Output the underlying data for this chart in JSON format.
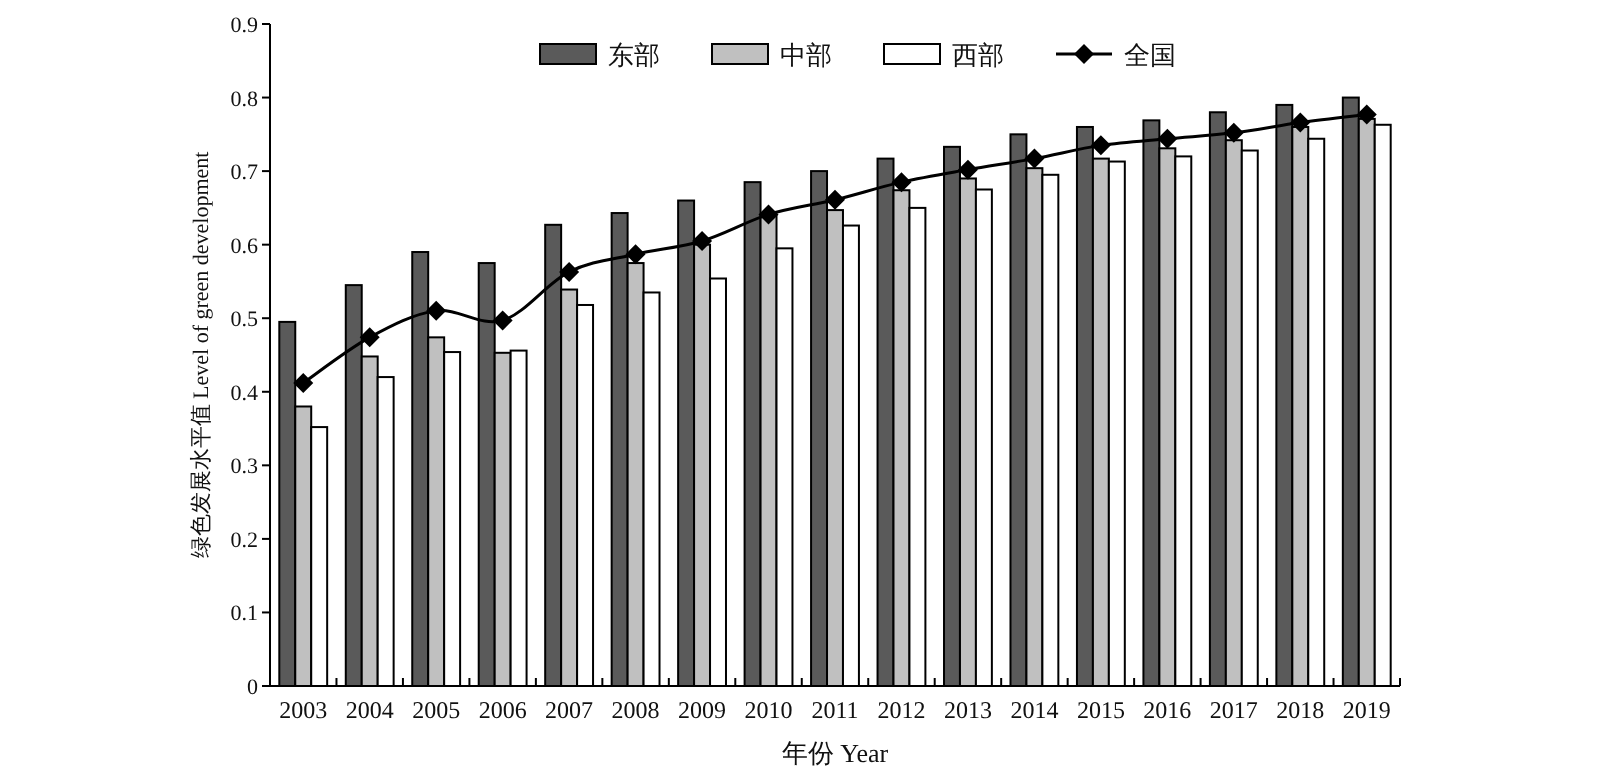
{
  "chart_data": {
    "type": "bar",
    "xlabel": "年份 Year",
    "ylabel": "绿色发展水平值 Level of green development",
    "categories": [
      "2003",
      "2004",
      "2005",
      "2006",
      "2007",
      "2008",
      "2009",
      "2010",
      "2011",
      "2012",
      "2013",
      "2014",
      "2015",
      "2016",
      "2017",
      "2018",
      "2019"
    ],
    "series": [
      {
        "name": "东部",
        "color": "#5a5a5a",
        "values": [
          0.495,
          0.545,
          0.59,
          0.575,
          0.627,
          0.643,
          0.66,
          0.685,
          0.7,
          0.717,
          0.733,
          0.75,
          0.76,
          0.769,
          0.78,
          0.79,
          0.8
        ]
      },
      {
        "name": "中部",
        "color": "#c0c0c0",
        "values": [
          0.38,
          0.448,
          0.474,
          0.453,
          0.539,
          0.575,
          0.6,
          0.64,
          0.647,
          0.674,
          0.69,
          0.704,
          0.717,
          0.731,
          0.742,
          0.76,
          0.771
        ]
      },
      {
        "name": "西部",
        "color": "#ffffff",
        "values": [
          0.352,
          0.42,
          0.454,
          0.456,
          0.518,
          0.535,
          0.554,
          0.595,
          0.626,
          0.65,
          0.675,
          0.695,
          0.713,
          0.72,
          0.728,
          0.744,
          0.763
        ]
      },
      {
        "name": "全国",
        "type": "line",
        "color": "#000000",
        "marker": "diamond",
        "values": [
          0.412,
          0.474,
          0.51,
          0.497,
          0.563,
          0.587,
          0.605,
          0.641,
          0.661,
          0.685,
          0.702,
          0.717,
          0.735,
          0.744,
          0.752,
          0.766,
          0.777
        ]
      }
    ],
    "ylim": [
      0,
      0.9
    ],
    "yticks": [
      0,
      0.1,
      0.2,
      0.3,
      0.4,
      0.5,
      0.6,
      0.7,
      0.8,
      0.9
    ],
    "grid": false,
    "legend": "top"
  }
}
